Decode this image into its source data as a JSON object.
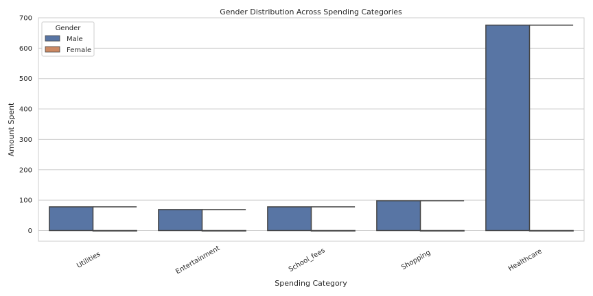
{
  "chart_data": {
    "type": "bar",
    "title": "Gender Distribution Across Spending Categories",
    "xlabel": "Spending Category",
    "ylabel": "Amount Spent",
    "categories": [
      "Utilities",
      "Entertainment",
      "School_fees",
      "Shopping",
      "Healthcare"
    ],
    "series": [
      {
        "name": "Male",
        "values": [
          78,
          69,
          78,
          98,
          676
        ],
        "color": "#5875a4"
      },
      {
        "name": "Female",
        "values": [
          0,
          0,
          0,
          0,
          0
        ],
        "color": "#cc8963"
      }
    ],
    "error_bar_values": [
      78,
      69,
      78,
      98,
      676
    ],
    "ylim": [
      -35,
      700
    ],
    "yticks": [
      0,
      100,
      200,
      300,
      400,
      500,
      600,
      700
    ],
    "grid": true,
    "legend": {
      "title": "Gender",
      "position": "top-left"
    }
  }
}
